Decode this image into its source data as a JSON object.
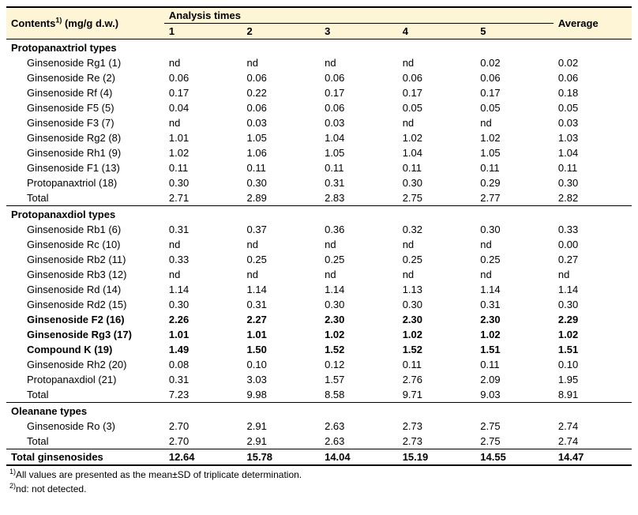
{
  "header": {
    "contents_label": "Contents",
    "contents_sup": "1)",
    "contents_unit": " (mg/g d.w.)",
    "analysis_times": "Analysis times",
    "avg": "Average",
    "cols": [
      "1",
      "2",
      "3",
      "4",
      "5"
    ]
  },
  "groups": [
    {
      "title": "Protopanaxtriol types",
      "rows": [
        {
          "label": "Ginsenoside Rg1 (1)",
          "v": [
            "nd",
            "nd",
            "nd",
            "nd",
            "0.02",
            "0.02"
          ]
        },
        {
          "label": "Ginsenoside Re (2)",
          "v": [
            "0.06",
            "0.06",
            "0.06",
            "0.06",
            "0.06",
            "0.06"
          ]
        },
        {
          "label": "Ginsenoside Rf (4)",
          "v": [
            "0.17",
            "0.22",
            "0.17",
            "0.17",
            "0.17",
            "0.18"
          ]
        },
        {
          "label": "Ginsenoside F5 (5)",
          "v": [
            "0.04",
            "0.06",
            "0.06",
            "0.05",
            "0.05",
            "0.05"
          ]
        },
        {
          "label": "Ginsenoside F3 (7)",
          "v": [
            "nd",
            "0.03",
            "0.03",
            "nd",
            "nd",
            "0.03"
          ]
        },
        {
          "label": "Ginsenoside Rg2 (8)",
          "v": [
            "1.01",
            "1.05",
            "1.04",
            "1.02",
            "1.02",
            "1.03"
          ]
        },
        {
          "label": "Ginsenoside Rh1 (9)",
          "v": [
            "1.02",
            "1.06",
            "1.05",
            "1.04",
            "1.05",
            "1.04"
          ]
        },
        {
          "label": "Ginsenoside F1 (13)",
          "v": [
            "0.11",
            "0.11",
            "0.11",
            "0.11",
            "0.11",
            "0.11"
          ]
        },
        {
          "label": "Protopanaxtriol (18)",
          "v": [
            "0.30",
            "0.30",
            "0.31",
            "0.30",
            "0.29",
            "0.30"
          ]
        },
        {
          "label": "Total",
          "v": [
            "2.71",
            "2.89",
            "2.83",
            "2.75",
            "2.77",
            "2.82"
          ]
        }
      ]
    },
    {
      "title": "Protopanaxdiol types",
      "rows": [
        {
          "label": "Ginsenoside Rb1 (6)",
          "v": [
            "0.31",
            "0.37",
            "0.36",
            "0.32",
            "0.30",
            "0.33"
          ]
        },
        {
          "label": "Ginsenoside Rc (10)",
          "v": [
            "nd",
            "nd",
            "nd",
            "nd",
            "nd",
            "0.00"
          ]
        },
        {
          "label": "Ginsenoside Rb2 (11)",
          "v": [
            "0.33",
            "0.25",
            "0.25",
            "0.25",
            "0.25",
            "0.27"
          ]
        },
        {
          "label": "Ginsenoside Rb3 (12)",
          "v": [
            "nd",
            "nd",
            "nd",
            "nd",
            "nd",
            "nd"
          ]
        },
        {
          "label": "Ginsenoside Rd (14)",
          "v": [
            "1.14",
            "1.14",
            "1.14",
            "1.13",
            "1.14",
            "1.14"
          ]
        },
        {
          "label": "Ginsenoside Rd2 (15)",
          "v": [
            "0.30",
            "0.31",
            "0.30",
            "0.30",
            "0.31",
            "0.30"
          ]
        },
        {
          "label": "Ginsenoside F2 (16)",
          "v": [
            "2.26",
            "2.27",
            "2.30",
            "2.30",
            "2.30",
            "2.29"
          ],
          "bold": true
        },
        {
          "label": "Ginsenoside Rg3 (17)",
          "v": [
            "1.01",
            "1.01",
            "1.02",
            "1.02",
            "1.02",
            "1.02"
          ],
          "bold": true
        },
        {
          "label": "Compound K (19)",
          "v": [
            "1.49",
            "1.50",
            "1.52",
            "1.52",
            "1.51",
            "1.51"
          ],
          "bold": true
        },
        {
          "label": "Ginsenoside Rh2 (20)",
          "v": [
            "0.08",
            "0.10",
            "0.12",
            "0.11",
            "0.11",
            "0.10"
          ]
        },
        {
          "label": "Protopanaxdiol (21)",
          "v": [
            "0.31",
            "3.03",
            "1.57",
            "2.76",
            "2.09",
            "1.95"
          ]
        },
        {
          "label": "Total",
          "v": [
            "7.23",
            "9.98",
            "8.58",
            "9.71",
            "9.03",
            "8.91"
          ]
        }
      ]
    },
    {
      "title": "Oleanane types",
      "rows": [
        {
          "label": "Ginsenoside Ro (3)",
          "v": [
            "2.70",
            "2.91",
            "2.63",
            "2.73",
            "2.75",
            "2.74"
          ]
        },
        {
          "label": "Total",
          "v": [
            "2.70",
            "2.91",
            "2.63",
            "2.73",
            "2.75",
            "2.74"
          ]
        }
      ]
    }
  ],
  "final": {
    "label": "Total ginsenosides",
    "v": [
      "12.64",
      "15.78",
      "14.04",
      "15.19",
      "14.55",
      "14.47"
    ]
  },
  "footnotes": [
    {
      "sup": "1)",
      "text": "All values are presented as the mean±SD of triplicate determination."
    },
    {
      "sup": "2)",
      "text": "nd: not detected."
    }
  ]
}
